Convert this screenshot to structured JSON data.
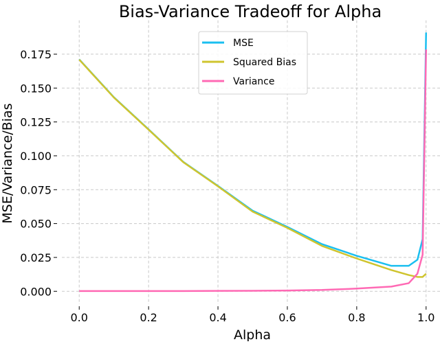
{
  "chart_data": {
    "type": "line",
    "title": "Bias-Variance Tradeoff for Alpha",
    "xlabel": "Alpha",
    "ylabel": "MSE/Variance/Bias",
    "xlim": [
      -0.05,
      1.05
    ],
    "ylim": [
      -0.0095,
      0.2
    ],
    "xticks": [
      "0.0",
      "0.2",
      "0.4",
      "0.6",
      "0.8",
      "1.0"
    ],
    "yticks": [
      "0.000",
      "0.025",
      "0.050",
      "0.075",
      "0.100",
      "0.125",
      "0.150",
      "0.175"
    ],
    "grid": true,
    "grid_style": "dashed",
    "legend_placement": "upper-center",
    "x": [
      0,
      0.1,
      0.2,
      0.3,
      0.4,
      0.5,
      0.6,
      0.7,
      0.8,
      0.9,
      0.95,
      0.975,
      0.99,
      1.0
    ],
    "series": [
      {
        "name": "MSE",
        "color": "#1ABFF0",
        "values": [
          0.1712,
          0.1432,
          0.1195,
          0.0955,
          0.0778,
          0.0595,
          0.0475,
          0.0348,
          0.0262,
          0.0188,
          0.0188,
          0.0233,
          0.0385,
          0.191
        ]
      },
      {
        "name": "Squared Bias",
        "color": "#CFC42E",
        "values": [
          0.171,
          0.143,
          0.1193,
          0.0953,
          0.0775,
          0.0588,
          0.0468,
          0.0335,
          0.0242,
          0.0157,
          0.012,
          0.0106,
          0.0106,
          0.013
        ]
      },
      {
        "name": "Variance",
        "color": "#FF69B4",
        "values": [
          0.0002,
          0.0002,
          0.0002,
          0.0002,
          0.0003,
          0.0004,
          0.0006,
          0.001,
          0.002,
          0.0035,
          0.006,
          0.013,
          0.027,
          0.1785
        ]
      }
    ]
  }
}
